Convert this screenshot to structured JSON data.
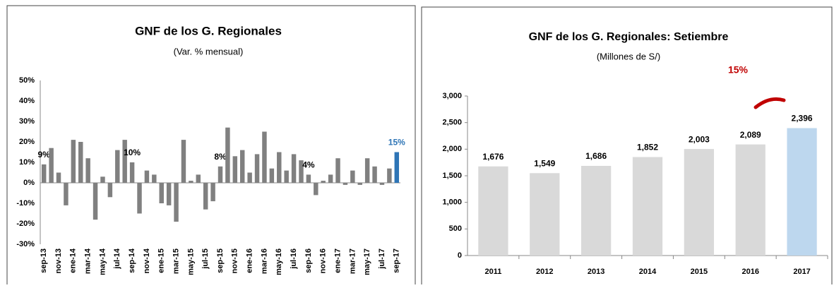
{
  "chart_data": [
    {
      "type": "bar",
      "title": "GNF de los G. Regionales",
      "subtitle": "(Var. % mensual)",
      "categories": [
        "sep-13",
        null,
        "nov-13",
        null,
        "ene-14",
        null,
        "mar-14",
        null,
        "may-14",
        null,
        "jul-14",
        null,
        "sep-14",
        null,
        "nov-14",
        null,
        "ene-15",
        null,
        "mar-15",
        null,
        "may-15",
        null,
        "jul-15",
        null,
        "sep-15",
        null,
        "nov-15",
        null,
        "ene-16",
        null,
        "mar-16",
        null,
        "may-16",
        null,
        "jul-16",
        null,
        "sep-16",
        null,
        "nov-16",
        null,
        "ene-17",
        null,
        "mar-17",
        null,
        "may-17",
        null,
        "jul-17",
        null,
        "sep-17"
      ],
      "values": [
        9,
        17,
        5,
        -11,
        21,
        20,
        12,
        -18,
        3,
        -7,
        16,
        21,
        10,
        -15,
        6,
        4,
        -10,
        -11,
        -19,
        21,
        1,
        4,
        -13,
        -9,
        8,
        27,
        13,
        16,
        5,
        14,
        25,
        7,
        15,
        6,
        14,
        11,
        4,
        -6,
        1,
        4,
        12,
        -1,
        6,
        -1,
        12,
        8,
        -1,
        7,
        15
      ],
      "value_labels": [
        "9%",
        null,
        null,
        null,
        null,
        null,
        null,
        null,
        null,
        null,
        null,
        null,
        "10%",
        null,
        null,
        null,
        null,
        null,
        null,
        null,
        null,
        null,
        null,
        null,
        "8%",
        null,
        null,
        null,
        null,
        null,
        null,
        null,
        null,
        null,
        null,
        null,
        "4%",
        null,
        null,
        null,
        null,
        null,
        null,
        null,
        null,
        null,
        null,
        null,
        "15%"
      ],
      "colors": [
        "#808080",
        "#808080",
        "#808080",
        "#808080",
        "#808080",
        "#808080",
        "#808080",
        "#808080",
        "#808080",
        "#808080",
        "#808080",
        "#808080",
        "#808080",
        "#808080",
        "#808080",
        "#808080",
        "#808080",
        "#808080",
        "#808080",
        "#808080",
        "#808080",
        "#808080",
        "#808080",
        "#808080",
        "#808080",
        "#808080",
        "#808080",
        "#808080",
        "#808080",
        "#808080",
        "#808080",
        "#808080",
        "#808080",
        "#808080",
        "#808080",
        "#808080",
        "#808080",
        "#808080",
        "#808080",
        "#808080",
        "#808080",
        "#808080",
        "#808080",
        "#808080",
        "#808080",
        "#808080",
        "#808080",
        "#808080",
        "#2e75b6"
      ],
      "ylim": [
        -30,
        50
      ],
      "yticks": [
        {
          "value": -30,
          "label": "-30%"
        },
        {
          "value": -20,
          "label": "-20%"
        },
        {
          "value": -10,
          "label": "-10%"
        },
        {
          "value": 0,
          "label": "0%"
        },
        {
          "value": 10,
          "label": "10%"
        },
        {
          "value": 20,
          "label": "20%"
        },
        {
          "value": 30,
          "label": "30%"
        },
        {
          "value": 40,
          "label": "40%"
        },
        {
          "value": 50,
          "label": "50%"
        }
      ]
    },
    {
      "type": "bar",
      "title": "GNF de los G. Regionales: Setiembre",
      "subtitle": "(Millones de S/)",
      "annotation": "15%",
      "categories": [
        "2011",
        "2012",
        "2013",
        "2014",
        "2015",
        "2016",
        "2017"
      ],
      "values": [
        1676,
        1549,
        1686,
        1852,
        2003,
        2089,
        2396
      ],
      "value_labels": [
        "1,676",
        "1,549",
        "1,686",
        "1,852",
        "2,003",
        "2,089",
        "2,396"
      ],
      "colors": [
        "#d9d9d9",
        "#d9d9d9",
        "#d9d9d9",
        "#d9d9d9",
        "#d9d9d9",
        "#d9d9d9",
        "#bdd7ee"
      ],
      "ylim": [
        0,
        3000
      ],
      "yticks": [
        0,
        500,
        {
          "value": 1000,
          "label": "1,000"
        },
        {
          "value": 1500,
          "label": "1,500"
        },
        {
          "value": 2000,
          "label": "2,000"
        },
        {
          "value": 2500,
          "label": "2,500"
        },
        {
          "value": 3000,
          "label": "3,000"
        }
      ]
    }
  ]
}
